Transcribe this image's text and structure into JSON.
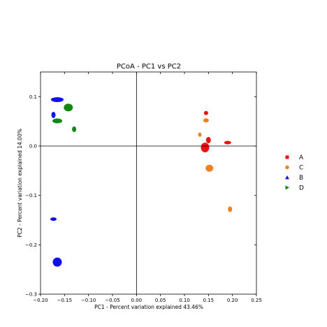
{
  "chart_data": {
    "type": "scatter",
    "title": "PCoA - PC1 vs PC2",
    "xlabel": "PC1 - Percent variation explained 43.46%",
    "ylabel": "PC2 - Percent variation explained 14.00%",
    "xlim": [
      -0.2,
      0.25
    ],
    "ylim": [
      -0.3,
      0.15
    ],
    "xticks": [
      "−0.20",
      "−0.15",
      "−0.10",
      "−0.05",
      "0.00",
      "0.05",
      "0.10",
      "0.15",
      "0.20",
      "0.25"
    ],
    "yticks": [
      "−0.3",
      "−0.2",
      "−0.1",
      "0.0",
      "0.1"
    ],
    "grid": false,
    "legend_position": "right",
    "series": [
      {
        "name": "A",
        "marker": "square",
        "color": "#ee1111",
        "points": [
          {
            "x": 0.143,
            "y": -0.003
          },
          {
            "x": 0.15,
            "y": 0.012
          },
          {
            "x": 0.145,
            "y": 0.067
          },
          {
            "x": 0.19,
            "y": 0.007
          }
        ]
      },
      {
        "name": "C",
        "marker": "circle",
        "color": "#f08020",
        "points": [
          {
            "x": 0.152,
            "y": -0.045
          },
          {
            "x": 0.145,
            "y": 0.052
          },
          {
            "x": 0.132,
            "y": 0.023
          },
          {
            "x": 0.195,
            "y": -0.128
          }
        ]
      },
      {
        "name": "B",
        "marker": "triangle",
        "color": "#1010ee",
        "points": [
          {
            "x": -0.165,
            "y": 0.094
          },
          {
            "x": -0.173,
            "y": 0.063
          },
          {
            "x": -0.173,
            "y": -0.148
          },
          {
            "x": -0.165,
            "y": -0.235
          }
        ]
      },
      {
        "name": "D",
        "marker": "triangle-right",
        "color": "#118811",
        "points": [
          {
            "x": -0.142,
            "y": 0.078
          },
          {
            "x": -0.165,
            "y": 0.051
          },
          {
            "x": -0.13,
            "y": 0.034
          }
        ]
      }
    ]
  }
}
